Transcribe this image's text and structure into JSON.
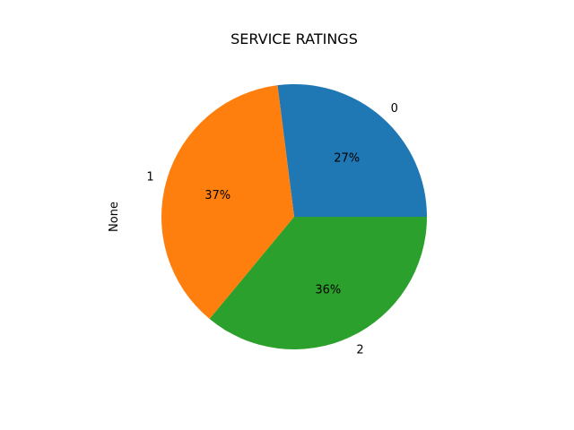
{
  "chart_data": {
    "type": "pie",
    "title": "SERVICE RATINGS",
    "ylabel": "None",
    "categories": [
      "0",
      "1",
      "2"
    ],
    "values": [
      27,
      37,
      36
    ],
    "percent_labels": [
      "27%",
      "37%",
      "36%"
    ],
    "colors": [
      "#1f77b4",
      "#ff7f0e",
      "#2ca02c"
    ],
    "start_angle_deg": 0,
    "direction": "counterclockwise",
    "legend": "none"
  }
}
